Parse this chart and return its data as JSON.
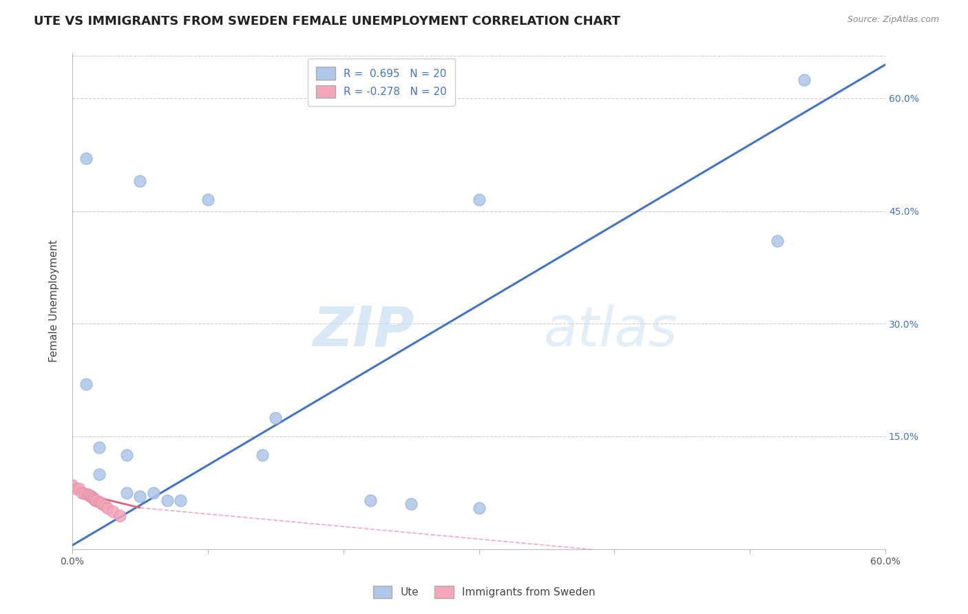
{
  "title": "UTE VS IMMIGRANTS FROM SWEDEN FEMALE UNEMPLOYMENT CORRELATION CHART",
  "source": "Source: ZipAtlas.com",
  "ylabel": "Female Unemployment",
  "legend_bottom": [
    "Ute",
    "Immigrants from Sweden"
  ],
  "watermark_zip": "ZIP",
  "watermark_atlas": "atlas",
  "R_ute": 0.695,
  "N_ute": 20,
  "R_imm": -0.278,
  "N_imm": 20,
  "xlim": [
    0.0,
    0.6
  ],
  "ylim": [
    0.0,
    0.66
  ],
  "ytick_positions": [
    0.15,
    0.3,
    0.45,
    0.6
  ],
  "ytick_labels": [
    "15.0%",
    "30.0%",
    "45.0%",
    "60.0%"
  ],
  "blue_scatter": [
    [
      0.01,
      0.52
    ],
    [
      0.05,
      0.49
    ],
    [
      0.1,
      0.465
    ],
    [
      0.3,
      0.465
    ],
    [
      0.52,
      0.41
    ],
    [
      0.54,
      0.625
    ],
    [
      0.01,
      0.22
    ],
    [
      0.02,
      0.135
    ],
    [
      0.02,
      0.1
    ],
    [
      0.04,
      0.125
    ],
    [
      0.04,
      0.075
    ],
    [
      0.05,
      0.07
    ],
    [
      0.06,
      0.075
    ],
    [
      0.07,
      0.065
    ],
    [
      0.08,
      0.065
    ],
    [
      0.15,
      0.175
    ],
    [
      0.14,
      0.125
    ],
    [
      0.22,
      0.065
    ],
    [
      0.25,
      0.06
    ],
    [
      0.3,
      0.055
    ]
  ],
  "pink_scatter": [
    [
      0.0,
      0.085
    ],
    [
      0.003,
      0.08
    ],
    [
      0.005,
      0.08
    ],
    [
      0.007,
      0.075
    ],
    [
      0.009,
      0.074
    ],
    [
      0.011,
      0.073
    ],
    [
      0.012,
      0.072
    ],
    [
      0.013,
      0.07
    ],
    [
      0.014,
      0.07
    ],
    [
      0.015,
      0.068
    ],
    [
      0.016,
      0.067
    ],
    [
      0.017,
      0.065
    ],
    [
      0.018,
      0.065
    ],
    [
      0.02,
      0.063
    ],
    [
      0.021,
      0.062
    ],
    [
      0.022,
      0.06
    ],
    [
      0.024,
      0.058
    ],
    [
      0.026,
      0.055
    ],
    [
      0.03,
      0.05
    ],
    [
      0.035,
      0.045
    ]
  ],
  "blue_trendline": [
    [
      0.0,
      0.005
    ],
    [
      0.6,
      0.645
    ]
  ],
  "pink_trendline_solid": [
    [
      0.0,
      0.077
    ],
    [
      0.05,
      0.055
    ]
  ],
  "pink_trendline_dashed": [
    [
      0.05,
      0.055
    ],
    [
      0.44,
      -0.01
    ]
  ],
  "blue_color": "#aec6e8",
  "pink_color": "#f4a7b9",
  "trendline_blue_color": "#4472c4",
  "trendline_pink_solid_color": "#e06080",
  "trendline_pink_dashed_color": "#f4a7b9",
  "background_color": "#ffffff",
  "grid_color": "#cccccc",
  "title_color": "#222222",
  "legend_text_color": "#4472c4",
  "right_tick_color": "#4472c4",
  "title_fontsize": 13,
  "axis_label_fontsize": 11
}
